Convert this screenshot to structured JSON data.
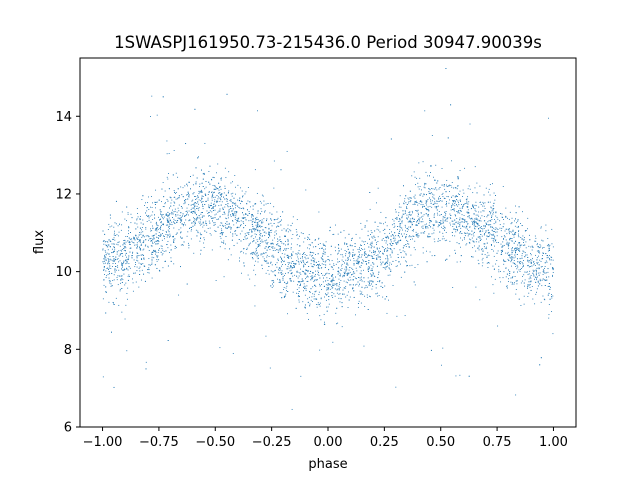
{
  "chart_data": {
    "type": "scatter",
    "title": "1SWASPJ161950.73-215436.0 Period 30947.90039s",
    "xlabel": "phase",
    "ylabel": "flux",
    "xlim": [
      -1.1,
      1.1
    ],
    "ylim": [
      6.0,
      15.5
    ],
    "xticks": [
      -1.0,
      -0.75,
      -0.5,
      -0.25,
      0.0,
      0.25,
      0.5,
      0.75,
      1.0
    ],
    "xtick_labels": [
      "−1.00",
      "−0.75",
      "−0.50",
      "−0.25",
      "0.00",
      "0.25",
      "0.50",
      "0.75",
      "1.00"
    ],
    "yticks": [
      6,
      8,
      10,
      12,
      14
    ],
    "ytick_labels": [
      "6",
      "8",
      "10",
      "12",
      "14"
    ],
    "grid": false,
    "point_color": "#1f77b4",
    "series": [
      {
        "x": [
          -1.0,
          -0.9,
          -0.8,
          -0.75,
          -0.7,
          -0.6,
          -0.55,
          -0.5,
          -0.4,
          -0.3,
          -0.25,
          -0.2,
          -0.1,
          0.0,
          0.1,
          0.2,
          0.25,
          0.3,
          0.4,
          0.45,
          0.5,
          0.6,
          0.7,
          0.75,
          0.8,
          0.9,
          1.0
        ],
        "y": [
          10.2,
          10.4,
          10.8,
          11.0,
          11.3,
          11.6,
          11.7,
          11.6,
          11.3,
          10.9,
          10.6,
          10.3,
          10.0,
          9.9,
          10.0,
          10.3,
          10.5,
          10.9,
          11.5,
          11.6,
          11.6,
          11.4,
          11.1,
          10.9,
          10.6,
          10.2,
          10.0
        ]
      }
    ]
  }
}
